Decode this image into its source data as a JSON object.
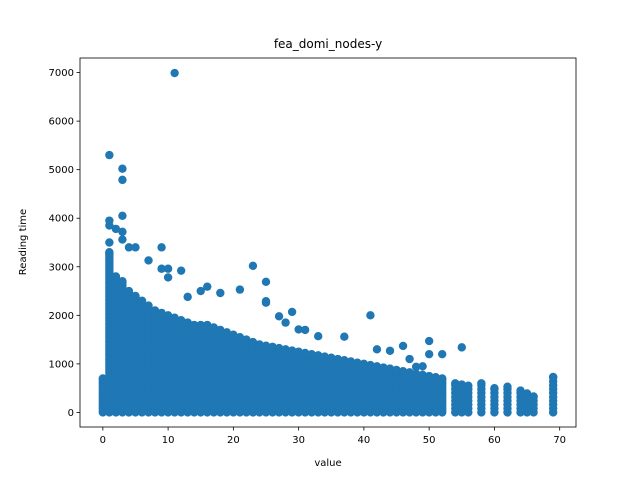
{
  "chart_data": {
    "type": "scatter",
    "title": "fea_domi_nodes-y",
    "xlabel": "value",
    "ylabel": "Reading time",
    "xlim": [
      -3.5,
      72.5
    ],
    "ylim": [
      -300,
      7300
    ],
    "xticks": [
      0,
      10,
      20,
      30,
      40,
      50,
      60,
      70
    ],
    "yticks": [
      0,
      1000,
      2000,
      3000,
      4000,
      5000,
      6000,
      7000
    ],
    "grid": false,
    "legend": "none",
    "series": [
      {
        "color": "#1f77b4",
        "outliers": [
          [
            11,
            6990
          ],
          [
            1,
            5300
          ],
          [
            3,
            5020
          ],
          [
            3,
            4790
          ],
          [
            1,
            3950
          ],
          [
            3,
            4050
          ],
          [
            1,
            3850
          ],
          [
            2,
            3780
          ],
          [
            3,
            3720
          ],
          [
            1,
            3500
          ],
          [
            3,
            3560
          ],
          [
            4,
            3400
          ],
          [
            5,
            3400
          ],
          [
            9,
            3400
          ],
          [
            7,
            3130
          ],
          [
            9,
            2960
          ],
          [
            10,
            2960
          ],
          [
            12,
            2920
          ],
          [
            10,
            2780
          ],
          [
            23,
            3020
          ],
          [
            25,
            2690
          ],
          [
            16,
            2590
          ],
          [
            15,
            2500
          ],
          [
            18,
            2460
          ],
          [
            13,
            2380
          ],
          [
            21,
            2530
          ],
          [
            25,
            2290
          ],
          [
            25,
            2260
          ],
          [
            27,
            1980
          ],
          [
            29,
            2070
          ],
          [
            41,
            2000
          ],
          [
            28,
            1850
          ],
          [
            30,
            1710
          ],
          [
            31,
            1700
          ],
          [
            33,
            1570
          ],
          [
            37,
            1560
          ],
          [
            42,
            1300
          ],
          [
            44,
            1270
          ],
          [
            46,
            1370
          ],
          [
            50,
            1470
          ],
          [
            55,
            1340
          ],
          [
            50,
            1200
          ],
          [
            52,
            1200
          ],
          [
            48,
            940
          ],
          [
            49,
            950
          ],
          [
            47,
            1100
          ]
        ],
        "density_envelope": {
          "x": [
            0,
            1,
            2,
            3,
            4,
            5,
            6,
            8,
            10,
            12,
            14,
            16,
            18,
            20,
            22,
            24,
            26,
            28,
            30,
            32,
            34,
            36,
            38,
            40,
            42,
            44,
            46,
            48,
            50,
            52,
            54,
            56,
            58,
            60,
            62,
            64,
            66,
            69
          ],
          "y": [
            700,
            3300,
            2800,
            2700,
            2500,
            2400,
            2300,
            2100,
            2000,
            1900,
            1800,
            1800,
            1700,
            1600,
            1500,
            1400,
            1350,
            1300,
            1250,
            1200,
            1150,
            1100,
            1050,
            1000,
            950,
            900,
            850,
            800,
            750,
            700,
            600,
            550,
            600,
            500,
            530,
            450,
            330,
            730
          ]
        }
      }
    ]
  }
}
